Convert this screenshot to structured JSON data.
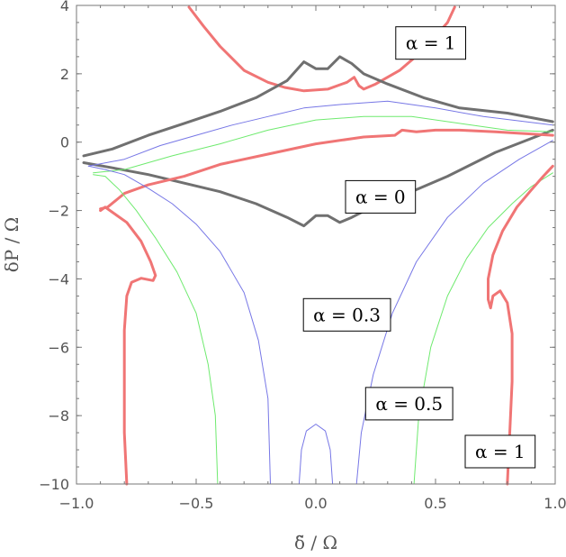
{
  "chart_data": {
    "type": "line",
    "title": "",
    "xlabel": "δ̃ / Ω",
    "ylabel": "δP / Ω",
    "xlim": [
      -1.0,
      1.0
    ],
    "ylim": [
      -10,
      4
    ],
    "x_ticks": [
      -1.0,
      -0.5,
      0.0,
      0.5,
      1.0
    ],
    "x_tick_labels": [
      "−1.0",
      "−0.5",
      "0.0",
      "0.5",
      "1.0"
    ],
    "y_ticks": [
      -10,
      -8,
      -6,
      -4,
      -2,
      0,
      2,
      4
    ],
    "y_tick_labels": [
      "−10",
      "−8",
      "−6",
      "−4",
      "−2",
      "0",
      "2",
      "4"
    ],
    "grid": false,
    "colors": {
      "alpha0": "#707070",
      "alpha03": "#7777e6",
      "alpha05": "#6fea6f",
      "alpha1": "#f07575",
      "frame": "#777777"
    },
    "annotations": [
      {
        "text": "α = 1",
        "x": 0.48,
        "y": 2.9
      },
      {
        "text": "α = 0",
        "x": 0.27,
        "y": -1.6
      },
      {
        "text": "α = 0.3",
        "x": 0.13,
        "y": -5.05
      },
      {
        "text": "α = 0.5",
        "x": 0.39,
        "y": -7.65
      },
      {
        "text": "α = 1",
        "x": 0.77,
        "y": -9.05
      }
    ],
    "series": [
      {
        "key": "a1_arc",
        "color": "#f07575",
        "width": 3,
        "points": [
          [
            -0.53,
            3.95
          ],
          [
            -0.47,
            3.4
          ],
          [
            -0.4,
            2.8
          ],
          [
            -0.3,
            2.1
          ],
          [
            -0.2,
            1.75
          ],
          [
            -0.13,
            1.6
          ],
          [
            -0.05,
            1.5
          ],
          [
            0.05,
            1.55
          ],
          [
            0.13,
            1.75
          ],
          [
            0.16,
            1.9
          ],
          [
            0.18,
            1.65
          ],
          [
            0.2,
            1.55
          ],
          [
            0.25,
            1.7
          ],
          [
            0.35,
            2.1
          ],
          [
            0.45,
            2.7
          ],
          [
            0.55,
            3.5
          ],
          [
            0.58,
            3.95
          ]
        ]
      },
      {
        "key": "a0_top",
        "color": "#707070",
        "width": 3,
        "points": [
          [
            -0.97,
            -0.4
          ],
          [
            -0.85,
            -0.2
          ],
          [
            -0.7,
            0.2
          ],
          [
            -0.55,
            0.55
          ],
          [
            -0.4,
            0.9
          ],
          [
            -0.25,
            1.3
          ],
          [
            -0.12,
            1.8
          ],
          [
            -0.05,
            2.35
          ],
          [
            0.0,
            2.15
          ],
          [
            0.05,
            2.15
          ],
          [
            0.1,
            2.5
          ],
          [
            0.15,
            2.3
          ],
          [
            0.2,
            2.0
          ],
          [
            0.3,
            1.7
          ],
          [
            0.45,
            1.3
          ],
          [
            0.6,
            1.0
          ],
          [
            0.8,
            0.85
          ],
          [
            0.99,
            0.6
          ]
        ]
      },
      {
        "key": "a0_bot",
        "color": "#707070",
        "width": 3,
        "points": [
          [
            -0.97,
            -0.6
          ],
          [
            -0.85,
            -0.75
          ],
          [
            -0.7,
            -0.95
          ],
          [
            -0.55,
            -1.2
          ],
          [
            -0.4,
            -1.45
          ],
          [
            -0.25,
            -1.8
          ],
          [
            -0.12,
            -2.2
          ],
          [
            -0.05,
            -2.45
          ],
          [
            0.0,
            -2.15
          ],
          [
            0.05,
            -2.15
          ],
          [
            0.1,
            -2.35
          ],
          [
            0.15,
            -2.2
          ],
          [
            0.22,
            -1.95
          ],
          [
            0.35,
            -1.6
          ],
          [
            0.55,
            -1.0
          ],
          [
            0.75,
            -0.3
          ],
          [
            0.99,
            0.35
          ]
        ]
      },
      {
        "key": "a03_upper",
        "color": "#7777e6",
        "width": 1,
        "points": [
          [
            -0.95,
            -0.7
          ],
          [
            -0.8,
            -0.5
          ],
          [
            -0.65,
            -0.1
          ],
          [
            -0.5,
            0.2
          ],
          [
            -0.35,
            0.5
          ],
          [
            -0.2,
            0.75
          ],
          [
            -0.05,
            1.0
          ],
          [
            0.1,
            1.1
          ],
          [
            0.3,
            1.2
          ],
          [
            0.5,
            1.0
          ],
          [
            0.7,
            0.75
          ],
          [
            0.99,
            0.5
          ]
        ]
      },
      {
        "key": "a05_upper",
        "color": "#6fea6f",
        "width": 1,
        "points": [
          [
            -0.93,
            -0.9
          ],
          [
            -0.8,
            -0.8
          ],
          [
            -0.6,
            -0.4
          ],
          [
            -0.4,
            -0.05
          ],
          [
            -0.2,
            0.35
          ],
          [
            0.0,
            0.65
          ],
          [
            0.2,
            0.75
          ],
          [
            0.4,
            0.75
          ],
          [
            0.6,
            0.55
          ],
          [
            0.8,
            0.35
          ],
          [
            0.99,
            0.3
          ]
        ]
      },
      {
        "key": "a1_mid",
        "color": "#f07575",
        "width": 3,
        "points": [
          [
            -0.9,
            -1.95
          ],
          [
            -0.87,
            -1.9
          ],
          [
            -0.8,
            -1.5
          ],
          [
            -0.7,
            -1.25
          ],
          [
            -0.55,
            -1.0
          ],
          [
            -0.4,
            -0.65
          ],
          [
            -0.2,
            -0.35
          ],
          [
            0.0,
            -0.05
          ],
          [
            0.2,
            0.15
          ],
          [
            0.33,
            0.2
          ],
          [
            0.36,
            0.35
          ],
          [
            0.42,
            0.3
          ],
          [
            0.5,
            0.35
          ],
          [
            0.6,
            0.35
          ],
          [
            0.75,
            0.3
          ],
          [
            0.99,
            0.2
          ]
        ]
      },
      {
        "key": "a1_left",
        "color": "#f07575",
        "width": 3,
        "points": [
          [
            -0.9,
            -2.0
          ],
          [
            -0.88,
            -1.9
          ],
          [
            -0.85,
            -2.05
          ],
          [
            -0.79,
            -2.35
          ],
          [
            -0.73,
            -2.9
          ],
          [
            -0.69,
            -3.5
          ],
          [
            -0.67,
            -3.9
          ],
          [
            -0.68,
            -4.05
          ],
          [
            -0.73,
            -3.98
          ],
          [
            -0.77,
            -4.1
          ],
          [
            -0.79,
            -4.5
          ],
          [
            -0.8,
            -5.5
          ],
          [
            -0.8,
            -7.0
          ],
          [
            -0.8,
            -8.5
          ],
          [
            -0.79,
            -10.0
          ]
        ]
      },
      {
        "key": "a05_left",
        "color": "#6fea6f",
        "width": 1,
        "points": [
          [
            -0.93,
            -0.95
          ],
          [
            -0.88,
            -1.0
          ],
          [
            -0.82,
            -1.4
          ],
          [
            -0.75,
            -2.0
          ],
          [
            -0.67,
            -2.8
          ],
          [
            -0.58,
            -3.8
          ],
          [
            -0.5,
            -5.0
          ],
          [
            -0.45,
            -6.5
          ],
          [
            -0.42,
            -8.0
          ],
          [
            -0.41,
            -10.0
          ]
        ]
      },
      {
        "key": "a03_left",
        "color": "#7777e6",
        "width": 1,
        "points": [
          [
            -0.95,
            -0.7
          ],
          [
            -0.88,
            -0.8
          ],
          [
            -0.8,
            -0.95
          ],
          [
            -0.7,
            -1.35
          ],
          [
            -0.6,
            -1.8
          ],
          [
            -0.5,
            -2.4
          ],
          [
            -0.4,
            -3.2
          ],
          [
            -0.3,
            -4.4
          ],
          [
            -0.24,
            -5.8
          ],
          [
            -0.2,
            -7.5
          ],
          [
            -0.19,
            -10.0
          ]
        ]
      },
      {
        "key": "a03_inner",
        "color": "#7777e6",
        "width": 1,
        "points": [
          [
            -0.07,
            -10.0
          ],
          [
            -0.06,
            -9.0
          ],
          [
            -0.04,
            -8.45
          ],
          [
            0.0,
            -8.25
          ],
          [
            0.04,
            -8.45
          ],
          [
            0.06,
            -9.0
          ],
          [
            0.07,
            -10.0
          ]
        ]
      },
      {
        "key": "a03_right",
        "color": "#7777e6",
        "width": 1,
        "points": [
          [
            0.17,
            -10.0
          ],
          [
            0.19,
            -8.5
          ],
          [
            0.24,
            -6.8
          ],
          [
            0.32,
            -5.0
          ],
          [
            0.42,
            -3.5
          ],
          [
            0.55,
            -2.2
          ],
          [
            0.7,
            -1.2
          ],
          [
            0.85,
            -0.5
          ],
          [
            0.99,
            0.05
          ]
        ]
      },
      {
        "key": "a05_right",
        "color": "#6fea6f",
        "width": 1,
        "points": [
          [
            0.41,
            -10.0
          ],
          [
            0.43,
            -8.0
          ],
          [
            0.48,
            -6.0
          ],
          [
            0.55,
            -4.5
          ],
          [
            0.63,
            -3.4
          ],
          [
            0.72,
            -2.5
          ],
          [
            0.82,
            -1.8
          ],
          [
            0.9,
            -1.3
          ],
          [
            0.99,
            -0.9
          ]
        ]
      },
      {
        "key": "a1_right",
        "color": "#f07575",
        "width": 3,
        "points": [
          [
            0.8,
            -10.0
          ],
          [
            0.81,
            -8.5
          ],
          [
            0.82,
            -7.0
          ],
          [
            0.82,
            -5.6
          ],
          [
            0.8,
            -4.7
          ],
          [
            0.77,
            -4.35
          ],
          [
            0.74,
            -4.5
          ],
          [
            0.73,
            -4.85
          ],
          [
            0.72,
            -4.6
          ],
          [
            0.72,
            -4.0
          ],
          [
            0.74,
            -3.3
          ],
          [
            0.78,
            -2.6
          ],
          [
            0.84,
            -1.9
          ],
          [
            0.9,
            -1.4
          ],
          [
            0.95,
            -1.0
          ],
          [
            0.99,
            -0.7
          ]
        ]
      }
    ]
  }
}
